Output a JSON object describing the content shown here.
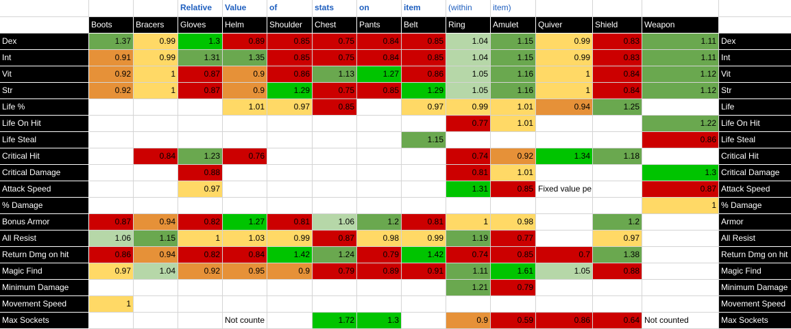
{
  "title_words": [
    {
      "col": 3,
      "text": "Relative",
      "bold": true
    },
    {
      "col": 4,
      "text": "Value",
      "bold": true
    },
    {
      "col": 5,
      "text": "of",
      "bold": true
    },
    {
      "col": 6,
      "text": "stats",
      "bold": true
    },
    {
      "col": 7,
      "text": "on",
      "bold": true
    },
    {
      "col": 8,
      "text": "item",
      "bold": true
    },
    {
      "col": 9,
      "text": "(within",
      "bold": false
    },
    {
      "col": 10,
      "text": "item)",
      "bold": false
    }
  ],
  "slots": [
    "Boots",
    "Bracers",
    "Gloves",
    "Helm",
    "Shoulder",
    "Chest",
    "Pants",
    "Belt",
    "Ring",
    "Amulet",
    "Quiver",
    "Shield",
    "Weapon"
  ],
  "colors": {
    "bright_green": "#00c400",
    "green": "#6aa84f",
    "pale_green": "#b6d7a8",
    "yellow": "#ffd966",
    "orange": "#e69138",
    "red": "#cc0000",
    "header_bg": "#000000",
    "header_text": "#ffffff",
    "title_text": "#1f5fbf"
  },
  "rows": [
    {
      "stat": "Dex",
      "right_label": "Dex",
      "cells": [
        {
          "v": "1.37",
          "c": "green"
        },
        {
          "v": "0.99",
          "c": "yellow"
        },
        {
          "v": "1.3",
          "c": "bright_green"
        },
        {
          "v": "0.89",
          "c": "red"
        },
        {
          "v": "0.85",
          "c": "red"
        },
        {
          "v": "0.75",
          "c": "red"
        },
        {
          "v": "0.84",
          "c": "red"
        },
        {
          "v": "0.85",
          "c": "red"
        },
        {
          "v": "1.04",
          "c": "pale_green"
        },
        {
          "v": "1.15",
          "c": "green"
        },
        {
          "v": "0.99",
          "c": "yellow"
        },
        {
          "v": "0.83",
          "c": "red"
        },
        {
          "v": "1.11",
          "c": "green"
        }
      ]
    },
    {
      "stat": "Int",
      "right_label": "Int",
      "cells": [
        {
          "v": "0.91",
          "c": "orange"
        },
        {
          "v": "0.99",
          "c": "yellow"
        },
        {
          "v": "1.31",
          "c": "green"
        },
        {
          "v": "1.35",
          "c": "green"
        },
        {
          "v": "0.85",
          "c": "red"
        },
        {
          "v": "0.75",
          "c": "red"
        },
        {
          "v": "0.84",
          "c": "red"
        },
        {
          "v": "0.85",
          "c": "red"
        },
        {
          "v": "1.04",
          "c": "pale_green"
        },
        {
          "v": "1.15",
          "c": "green"
        },
        {
          "v": "0.99",
          "c": "yellow"
        },
        {
          "v": "0.83",
          "c": "red"
        },
        {
          "v": "1.11",
          "c": "green"
        }
      ]
    },
    {
      "stat": "Vit",
      "right_label": "Vit",
      "cells": [
        {
          "v": "0.92",
          "c": "orange"
        },
        {
          "v": "1",
          "c": "yellow"
        },
        {
          "v": "0.87",
          "c": "red"
        },
        {
          "v": "0.9",
          "c": "orange"
        },
        {
          "v": "0.86",
          "c": "red"
        },
        {
          "v": "1.13",
          "c": "green"
        },
        {
          "v": "1.27",
          "c": "bright_green"
        },
        {
          "v": "0.86",
          "c": "red"
        },
        {
          "v": "1.05",
          "c": "pale_green"
        },
        {
          "v": "1.16",
          "c": "green"
        },
        {
          "v": "1",
          "c": "yellow"
        },
        {
          "v": "0.84",
          "c": "red"
        },
        {
          "v": "1.12",
          "c": "green"
        }
      ]
    },
    {
      "stat": "Str",
      "right_label": "Str",
      "cells": [
        {
          "v": "0.92",
          "c": "orange"
        },
        {
          "v": "1",
          "c": "yellow"
        },
        {
          "v": "0.87",
          "c": "red"
        },
        {
          "v": "0.9",
          "c": "orange"
        },
        {
          "v": "1.29",
          "c": "bright_green"
        },
        {
          "v": "0.75",
          "c": "red"
        },
        {
          "v": "0.85",
          "c": "red"
        },
        {
          "v": "1.29",
          "c": "bright_green"
        },
        {
          "v": "1.05",
          "c": "pale_green"
        },
        {
          "v": "1.16",
          "c": "green"
        },
        {
          "v": "1",
          "c": "yellow"
        },
        {
          "v": "0.84",
          "c": "red"
        },
        {
          "v": "1.12",
          "c": "green"
        }
      ]
    },
    {
      "stat": "Life %",
      "right_label": "Life",
      "cells": [
        null,
        null,
        null,
        {
          "v": "1.01",
          "c": "yellow"
        },
        {
          "v": "0.97",
          "c": "yellow"
        },
        {
          "v": "0.85",
          "c": "red"
        },
        null,
        {
          "v": "0.97",
          "c": "yellow"
        },
        {
          "v": "0.99",
          "c": "yellow"
        },
        {
          "v": "1.01",
          "c": "yellow"
        },
        {
          "v": "0.94",
          "c": "orange"
        },
        {
          "v": "1.25",
          "c": "green"
        },
        null
      ]
    },
    {
      "stat": "Life On Hit",
      "right_label": "Life On Hit",
      "cells": [
        null,
        null,
        null,
        null,
        null,
        null,
        null,
        null,
        {
          "v": "0.77",
          "c": "red"
        },
        {
          "v": "1.01",
          "c": "yellow"
        },
        null,
        null,
        {
          "v": "1.22",
          "c": "green"
        }
      ]
    },
    {
      "stat": "Life Steal",
      "right_label": "Life Steal",
      "cells": [
        null,
        null,
        null,
        null,
        null,
        null,
        null,
        {
          "v": "1.15",
          "c": "green"
        },
        null,
        null,
        null,
        null,
        {
          "v": "0.86",
          "c": "red"
        }
      ]
    },
    {
      "stat": "Critical Hit",
      "right_label": "Critical Hit",
      "cells": [
        null,
        {
          "v": "0.84",
          "c": "red"
        },
        {
          "v": "1.23",
          "c": "green"
        },
        {
          "v": "0.76",
          "c": "red"
        },
        null,
        null,
        null,
        null,
        {
          "v": "0.74",
          "c": "red"
        },
        {
          "v": "0.92",
          "c": "orange"
        },
        {
          "v": "1.34",
          "c": "bright_green"
        },
        {
          "v": "1.18",
          "c": "green"
        },
        null
      ]
    },
    {
      "stat": "Critical Damage",
      "right_label": "Critical Damage",
      "cells": [
        null,
        null,
        {
          "v": "0.88",
          "c": "red"
        },
        null,
        null,
        null,
        null,
        null,
        {
          "v": "0.81",
          "c": "red"
        },
        {
          "v": "1.01",
          "c": "yellow"
        },
        null,
        null,
        {
          "v": "1.3",
          "c": "bright_green"
        }
      ]
    },
    {
      "stat": "Attack Speed",
      "right_label": "Attack Speed",
      "cells": [
        null,
        null,
        {
          "v": "0.97",
          "c": "yellow"
        },
        null,
        null,
        null,
        null,
        null,
        {
          "v": "1.31",
          "c": "bright_green"
        },
        {
          "v": "0.85",
          "c": "red"
        },
        {
          "t": "Fixed value pe",
          "c": null
        },
        null,
        {
          "v": "0.87",
          "c": "red"
        }
      ]
    },
    {
      "stat": "% Damage",
      "right_label": "% Damage",
      "cells": [
        null,
        null,
        null,
        null,
        null,
        null,
        null,
        null,
        null,
        null,
        null,
        null,
        {
          "v": "1",
          "c": "yellow"
        }
      ]
    },
    {
      "stat": "Bonus Armor",
      "right_label": "Armor",
      "cells": [
        {
          "v": "0.87",
          "c": "red"
        },
        {
          "v": "0.94",
          "c": "orange"
        },
        {
          "v": "0.82",
          "c": "red"
        },
        {
          "v": "1.27",
          "c": "bright_green"
        },
        {
          "v": "0.81",
          "c": "red"
        },
        {
          "v": "1.06",
          "c": "pale_green"
        },
        {
          "v": "1.2",
          "c": "green"
        },
        {
          "v": "0.81",
          "c": "red"
        },
        {
          "v": "1",
          "c": "yellow"
        },
        {
          "v": "0.98",
          "c": "yellow"
        },
        null,
        {
          "v": "1.2",
          "c": "green"
        },
        null
      ]
    },
    {
      "stat": "All Resist",
      "right_label": "All Resist",
      "cells": [
        {
          "v": "1.06",
          "c": "pale_green"
        },
        {
          "v": "1.15",
          "c": "green"
        },
        {
          "v": "1",
          "c": "yellow"
        },
        {
          "v": "1.03",
          "c": "yellow"
        },
        {
          "v": "0.99",
          "c": "yellow"
        },
        {
          "v": "0.87",
          "c": "red"
        },
        {
          "v": "0.98",
          "c": "yellow"
        },
        {
          "v": "0.99",
          "c": "yellow"
        },
        {
          "v": "1.19",
          "c": "green"
        },
        {
          "v": "0.77",
          "c": "red"
        },
        null,
        {
          "v": "0.97",
          "c": "yellow"
        },
        null
      ]
    },
    {
      "stat": "Return Dmg on hit",
      "right_label": "Return Dmg on hit",
      "cells": [
        {
          "v": "0.86",
          "c": "red"
        },
        {
          "v": "0.94",
          "c": "orange"
        },
        {
          "v": "0.82",
          "c": "red"
        },
        {
          "v": "0.84",
          "c": "red"
        },
        {
          "v": "1.42",
          "c": "bright_green"
        },
        {
          "v": "1.24",
          "c": "green"
        },
        {
          "v": "0.79",
          "c": "red"
        },
        {
          "v": "1.42",
          "c": "bright_green"
        },
        {
          "v": "0.74",
          "c": "red"
        },
        {
          "v": "0.85",
          "c": "red"
        },
        {
          "v": "0.7",
          "c": "red"
        },
        {
          "v": "1.38",
          "c": "green"
        },
        null
      ]
    },
    {
      "stat": "Magic Find",
      "right_label": "Magic Find",
      "cells": [
        {
          "v": "0.97",
          "c": "yellow"
        },
        {
          "v": "1.04",
          "c": "pale_green"
        },
        {
          "v": "0.92",
          "c": "orange"
        },
        {
          "v": "0.95",
          "c": "orange"
        },
        {
          "v": "0.9",
          "c": "orange"
        },
        {
          "v": "0.79",
          "c": "red"
        },
        {
          "v": "0.89",
          "c": "red"
        },
        {
          "v": "0.91",
          "c": "red"
        },
        {
          "v": "1.11",
          "c": "green"
        },
        {
          "v": "1.61",
          "c": "bright_green"
        },
        {
          "v": "1.05",
          "c": "pale_green"
        },
        {
          "v": "0.88",
          "c": "red"
        },
        null
      ]
    },
    {
      "stat": "Minimum Damage",
      "right_label": "Minimum Damage",
      "cells": [
        null,
        null,
        null,
        null,
        null,
        null,
        null,
        null,
        {
          "v": "1.21",
          "c": "green"
        },
        {
          "v": "0.79",
          "c": "red"
        },
        null,
        null,
        null
      ]
    },
    {
      "stat": "Movement Speed",
      "right_label": "Movement Speed",
      "cells": [
        {
          "v": "1",
          "c": "yellow"
        },
        null,
        null,
        null,
        null,
        null,
        null,
        null,
        null,
        null,
        null,
        null,
        null
      ]
    },
    {
      "stat": "Max Sockets",
      "right_label": "Max Sockets",
      "cells": [
        null,
        null,
        null,
        {
          "t": "Not counte",
          "c": null
        },
        null,
        {
          "v": "1.72",
          "c": "bright_green"
        },
        {
          "v": "1.3",
          "c": "bright_green"
        },
        null,
        {
          "v": "0.9",
          "c": "orange"
        },
        {
          "v": "0.59",
          "c": "red"
        },
        {
          "v": "0.86",
          "c": "red"
        },
        {
          "v": "0.64",
          "c": "red"
        },
        {
          "t": "Not counted",
          "c": null
        }
      ]
    }
  ]
}
